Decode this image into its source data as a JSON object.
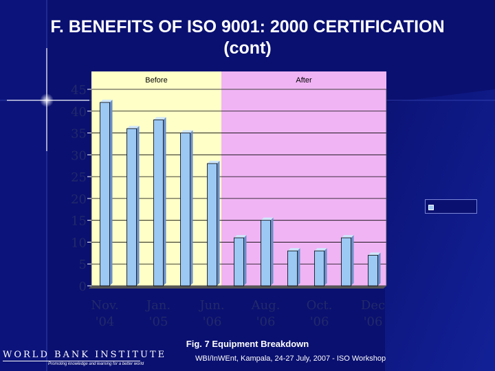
{
  "slide": {
    "title_line1": "F. BENEFITS OF ISO 9001: 2000 CERTIFICATION",
    "title_line2": "(cont)",
    "caption": "Fig. 7 Equipment Breakdown",
    "footer": "WBI/InWEnt, Kampala,  24-27 July, 2007 - ISO Workshop",
    "logo": {
      "name": "WORLD BANK INSTITUTE",
      "tagline": "Promoting knowledge and learning for a better world"
    }
  },
  "colors": {
    "background": "#0a1070",
    "before_region": "#ffffc8",
    "after_region": "#f0b4f4",
    "bar": "#9cc8f4",
    "bar_dark": "#6a8fc8",
    "bar_top": "#cfe6fc"
  },
  "chart_data": {
    "type": "bar",
    "regions": [
      {
        "label": "Before",
        "from": 0,
        "to": 4
      },
      {
        "label": "After",
        "from": 5,
        "to": 11
      }
    ],
    "values": [
      42,
      36,
      38,
      35,
      28,
      11,
      15,
      8,
      8,
      11,
      7
    ],
    "x_tick_labels": [
      {
        "line1": "Nov.",
        "line2": "'04",
        "at": 0
      },
      {
        "line1": "Jan.",
        "line2": "'05",
        "at": 2
      },
      {
        "line1": "Jun.",
        "line2": "'06",
        "at": 4
      },
      {
        "line1": "Aug.",
        "line2": "'06",
        "at": 6
      },
      {
        "line1": "Oct.",
        "line2": "'06",
        "at": 8
      },
      {
        "line1": "Dec",
        "line2": "'06",
        "at": 10
      }
    ],
    "y_ticks": [
      "0",
      "5",
      "10",
      "15",
      "20",
      "25",
      "30",
      "35",
      "40",
      "45"
    ],
    "ylim": [
      0,
      45
    ],
    "grid": true,
    "legend": "right"
  }
}
